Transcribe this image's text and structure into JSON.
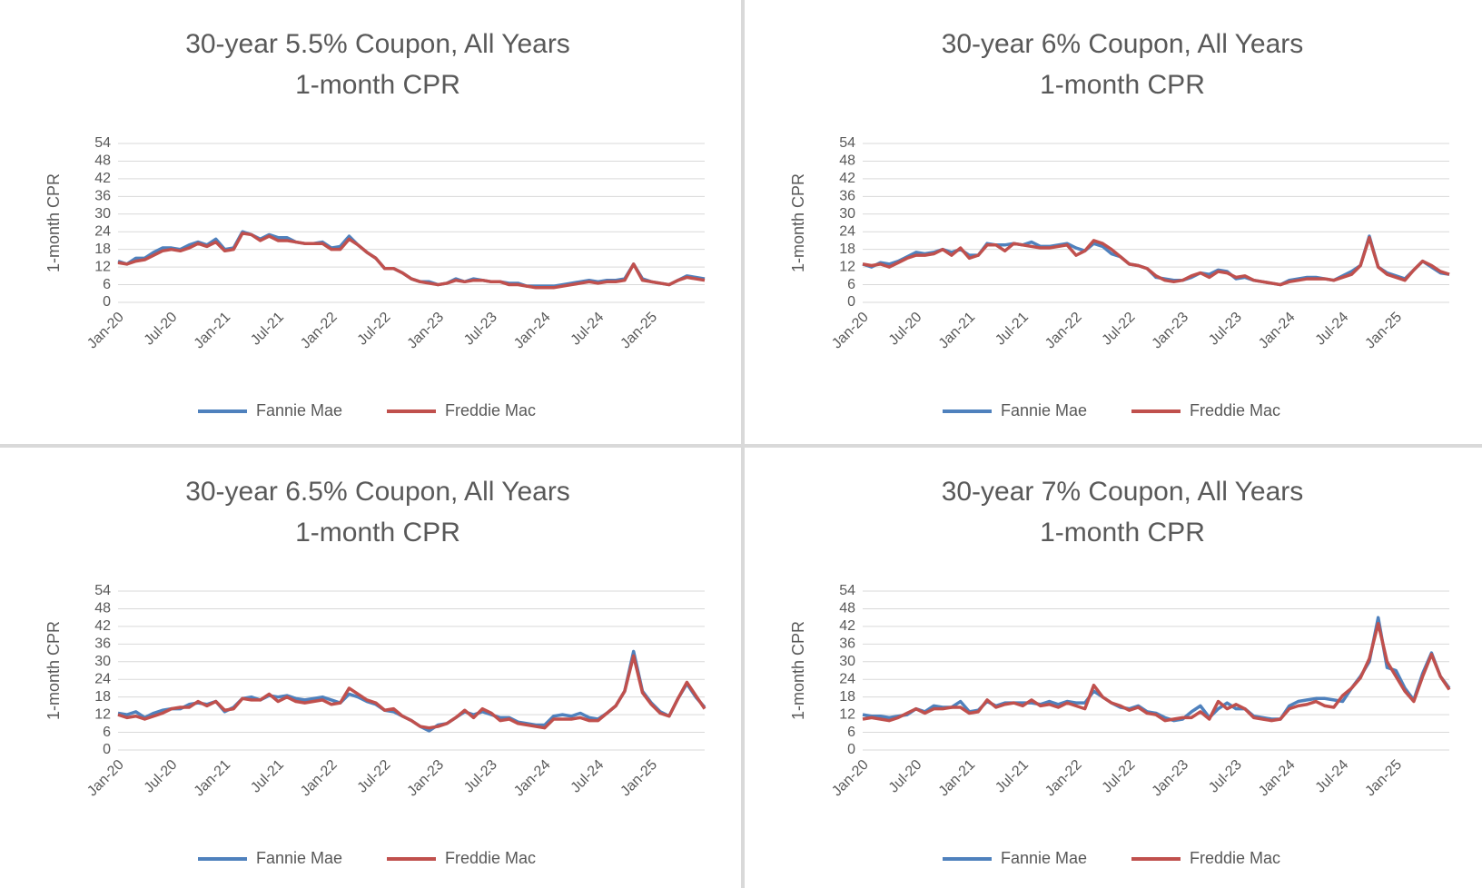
{
  "chart_data": [
    {
      "type": "line",
      "title": "30-year 5.5% Coupon, All Years",
      "subtitle": "1-month CPR",
      "y_label": "1-month CPR",
      "categories": [
        "Jan-20",
        null,
        null,
        null,
        null,
        null,
        "Jul-20",
        null,
        null,
        null,
        null,
        null,
        "Jan-21",
        null,
        null,
        null,
        null,
        null,
        "Jul-21",
        null,
        null,
        null,
        null,
        null,
        "Jan-22",
        null,
        null,
        null,
        null,
        null,
        "Jul-22",
        null,
        null,
        null,
        null,
        null,
        "Jan-23",
        null,
        null,
        null,
        null,
        null,
        "Jul-23",
        null,
        null,
        null,
        null,
        null,
        "Jan-24",
        null,
        null,
        null,
        null,
        null,
        "Jul-24",
        null,
        null,
        null,
        null,
        null,
        "Jan-25",
        null,
        null,
        null,
        null,
        null,
        null
      ],
      "series": [
        {
          "name": "Fannie Mae",
          "color": "#4f81bd",
          "values": [
            14,
            13,
            15,
            15,
            17,
            18.5,
            18.5,
            18,
            19.5,
            20.5,
            19.5,
            21.5,
            18,
            18.5,
            24,
            23,
            21.5,
            23,
            22,
            22,
            20.5,
            20,
            20,
            20.5,
            18.5,
            19,
            22.5,
            19.5,
            17,
            15,
            11.5,
            11.5,
            10,
            8,
            7,
            7,
            6,
            6.5,
            8,
            7,
            8,
            7.5,
            7,
            7,
            6.5,
            6.5,
            5.5,
            5.5,
            5.5,
            5.5,
            6,
            6.5,
            7,
            7.5,
            7,
            7.5,
            7.5,
            8,
            13,
            8,
            7,
            6.5,
            6,
            7.5,
            9,
            8.5,
            8
          ]
        },
        {
          "name": "Freddie Mac",
          "color": "#c0504d",
          "values": [
            13.5,
            13,
            14,
            14.5,
            16,
            17.5,
            18,
            17.5,
            18.5,
            20,
            19,
            20.5,
            17.5,
            18,
            23.5,
            23,
            21,
            22.5,
            21,
            21,
            20.5,
            20,
            20,
            20,
            18,
            18,
            21.5,
            19.5,
            17,
            15,
            11.5,
            11.5,
            10,
            8,
            7,
            6.5,
            6,
            6.5,
            7.5,
            7,
            7.5,
            7.5,
            7,
            7,
            6,
            6,
            5.5,
            5,
            5,
            5,
            5.5,
            6,
            6.5,
            7,
            6.5,
            7,
            7,
            7.5,
            13,
            7.5,
            7,
            6.5,
            6,
            7.5,
            8.5,
            8,
            7.5
          ]
        }
      ],
      "ylim": [
        0,
        54
      ],
      "yticks": [
        0,
        6,
        12,
        18,
        24,
        30,
        36,
        42,
        48,
        54
      ],
      "grid": true,
      "legend": "bottom"
    },
    {
      "type": "line",
      "title": "30-year 6% Coupon, All Years",
      "subtitle": "1-month CPR",
      "y_label": "1-month CPR",
      "categories": [
        "Jan-20",
        null,
        null,
        null,
        null,
        null,
        "Jul-20",
        null,
        null,
        null,
        null,
        null,
        "Jan-21",
        null,
        null,
        null,
        null,
        null,
        "Jul-21",
        null,
        null,
        null,
        null,
        null,
        "Jan-22",
        null,
        null,
        null,
        null,
        null,
        "Jul-22",
        null,
        null,
        null,
        null,
        null,
        "Jan-23",
        null,
        null,
        null,
        null,
        null,
        "Jul-23",
        null,
        null,
        null,
        null,
        null,
        "Jan-24",
        null,
        null,
        null,
        null,
        null,
        "Jul-24",
        null,
        null,
        null,
        null,
        null,
        "Jan-25",
        null,
        null,
        null,
        null,
        null,
        null
      ],
      "series": [
        {
          "name": "Fannie Mae",
          "color": "#4f81bd",
          "values": [
            13,
            12,
            13.5,
            13,
            14,
            15.5,
            17,
            16.5,
            17,
            18,
            17,
            18,
            16,
            16,
            20,
            19.5,
            19.5,
            20,
            19.5,
            20.5,
            19,
            19,
            19.5,
            20,
            18.5,
            17.5,
            20,
            19,
            16.5,
            15.5,
            13,
            12.5,
            11.5,
            8.5,
            8,
            7.5,
            7.5,
            8.5,
            10,
            9.5,
            11,
            10.5,
            8,
            8.5,
            7.5,
            7,
            6.5,
            6,
            7.5,
            8,
            8.5,
            8.5,
            8,
            7.5,
            9,
            10.5,
            12.5,
            22.5,
            12,
            10,
            9,
            8,
            11,
            14,
            12,
            10,
            9.5
          ]
        },
        {
          "name": "Freddie Mac",
          "color": "#c0504d",
          "values": [
            13,
            12.5,
            13,
            12,
            13.5,
            15,
            16,
            16,
            16.5,
            18,
            16,
            18.5,
            15,
            16,
            19.5,
            19.5,
            17.5,
            20,
            19.5,
            19,
            18.5,
            18.5,
            19,
            19.5,
            16,
            17.5,
            21,
            20,
            18,
            15.5,
            13,
            12.5,
            11.5,
            9,
            7.5,
            7,
            7.5,
            9,
            10,
            8.5,
            10.5,
            10,
            8.5,
            9,
            7.5,
            7,
            6.5,
            6,
            7,
            7.5,
            8,
            8,
            8,
            7.5,
            8.5,
            9.5,
            12.5,
            22,
            12,
            9.5,
            8.5,
            7.5,
            11,
            14,
            12.5,
            10.5,
            9.5
          ]
        }
      ],
      "ylim": [
        0,
        54
      ],
      "yticks": [
        0,
        6,
        12,
        18,
        24,
        30,
        36,
        42,
        48,
        54
      ],
      "grid": true,
      "legend": "bottom"
    },
    {
      "type": "line",
      "title": "30-year 6.5% Coupon, All Years",
      "subtitle": "1-month CPR",
      "y_label": "1-month CPR",
      "categories": [
        "Jan-20",
        null,
        null,
        null,
        null,
        null,
        "Jul-20",
        null,
        null,
        null,
        null,
        null,
        "Jan-21",
        null,
        null,
        null,
        null,
        null,
        "Jul-21",
        null,
        null,
        null,
        null,
        null,
        "Jan-22",
        null,
        null,
        null,
        null,
        null,
        "Jul-22",
        null,
        null,
        null,
        null,
        null,
        "Jan-23",
        null,
        null,
        null,
        null,
        null,
        "Jul-23",
        null,
        null,
        null,
        null,
        null,
        "Jan-24",
        null,
        null,
        null,
        null,
        null,
        "Jul-24",
        null,
        null,
        null,
        null,
        null,
        "Jan-25",
        null,
        null,
        null,
        null,
        null,
        null
      ],
      "series": [
        {
          "name": "Fannie Mae",
          "color": "#4f81bd",
          "values": [
            12.5,
            12,
            13,
            11,
            12.5,
            13.5,
            14,
            14,
            15.5,
            16,
            15.5,
            16.5,
            13,
            14.5,
            17.5,
            18,
            17,
            18.5,
            18,
            18.5,
            17.5,
            17,
            17.5,
            18,
            17,
            16,
            19,
            18,
            16.5,
            15.5,
            13.5,
            13,
            11.5,
            10,
            8,
            6.5,
            8.5,
            9,
            11,
            13,
            12,
            13,
            12,
            11,
            11,
            9.5,
            9,
            8.5,
            8.5,
            11.5,
            12,
            11.5,
            12.5,
            11,
            10.5,
            12.5,
            15,
            20,
            33.5,
            20,
            16,
            13,
            11.5,
            17.5,
            22.5,
            18,
            14.5
          ]
        },
        {
          "name": "Freddie Mac",
          "color": "#c0504d",
          "values": [
            12,
            11,
            11.5,
            10.5,
            11.5,
            12.5,
            14,
            14.5,
            14.5,
            16.5,
            15,
            16.5,
            13.5,
            14,
            17.5,
            17,
            17,
            19,
            16.5,
            18,
            16.5,
            16,
            16.5,
            17,
            15.5,
            16,
            21,
            19,
            17,
            16,
            13.5,
            14,
            11.5,
            10,
            8,
            7.5,
            8,
            9,
            11,
            13.5,
            11,
            14,
            12.5,
            10,
            10.5,
            9,
            8.5,
            8,
            7.5,
            10.5,
            10.5,
            10.5,
            11,
            10,
            10,
            12.5,
            15,
            20,
            32,
            19.5,
            15.5,
            12.5,
            11.5,
            17.5,
            23,
            18.5,
            14
          ]
        }
      ],
      "ylim": [
        0,
        54
      ],
      "yticks": [
        0,
        6,
        12,
        18,
        24,
        30,
        36,
        42,
        48,
        54
      ],
      "grid": true,
      "legend": "bottom"
    },
    {
      "type": "line",
      "title": "30-year 7% Coupon, All Years",
      "subtitle": "1-month CPR",
      "y_label": "1-month CPR",
      "categories": [
        "Jan-20",
        null,
        null,
        null,
        null,
        null,
        "Jul-20",
        null,
        null,
        null,
        null,
        null,
        "Jan-21",
        null,
        null,
        null,
        null,
        null,
        "Jul-21",
        null,
        null,
        null,
        null,
        null,
        "Jan-22",
        null,
        null,
        null,
        null,
        null,
        "Jul-22",
        null,
        null,
        null,
        null,
        null,
        "Jan-23",
        null,
        null,
        null,
        null,
        null,
        "Jul-23",
        null,
        null,
        null,
        null,
        null,
        "Jan-24",
        null,
        null,
        null,
        null,
        null,
        "Jul-24",
        null,
        null,
        null,
        null,
        null,
        "Jan-25",
        null,
        null,
        null,
        null,
        null,
        null
      ],
      "series": [
        {
          "name": "Fannie Mae",
          "color": "#4f81bd",
          "values": [
            12,
            11.5,
            11.5,
            11,
            11.5,
            12,
            14,
            13,
            15,
            14.5,
            14.5,
            16.5,
            13,
            13.5,
            16.5,
            15,
            16,
            16,
            16,
            16,
            15.5,
            16.5,
            15.5,
            16.5,
            16,
            16,
            20,
            18,
            16,
            14.5,
            14,
            15,
            13,
            12.5,
            11,
            10,
            10.5,
            13,
            15,
            11,
            14,
            16,
            14,
            14,
            11.5,
            11,
            10.5,
            10.5,
            15,
            16.5,
            17,
            17.5,
            17.5,
            17,
            16.5,
            21,
            25,
            30,
            45,
            28,
            27,
            21,
            17,
            26,
            33,
            25,
            21
          ]
        },
        {
          "name": "Freddie Mac",
          "color": "#c0504d",
          "values": [
            10.5,
            11,
            10.5,
            10,
            11,
            12.5,
            14,
            12.5,
            14,
            14,
            14.5,
            14.5,
            12.5,
            13,
            17,
            14.5,
            15.5,
            16,
            15,
            17,
            15,
            15.5,
            14.5,
            16,
            15,
            14,
            22,
            18,
            16,
            15,
            13.5,
            14.5,
            12.5,
            12,
            10,
            10.5,
            11,
            11,
            13,
            10.5,
            16.5,
            14,
            15.5,
            14,
            11,
            10.5,
            10,
            10.5,
            14,
            15,
            15.5,
            16.5,
            15,
            14.5,
            18.5,
            21,
            24.5,
            31,
            43,
            30,
            25,
            20,
            16.5,
            25,
            32.5,
            25,
            20.5
          ]
        }
      ],
      "ylim": [
        0,
        54
      ],
      "yticks": [
        0,
        6,
        12,
        18,
        24,
        30,
        36,
        42,
        48,
        54
      ],
      "grid": true,
      "legend": "bottom"
    }
  ]
}
